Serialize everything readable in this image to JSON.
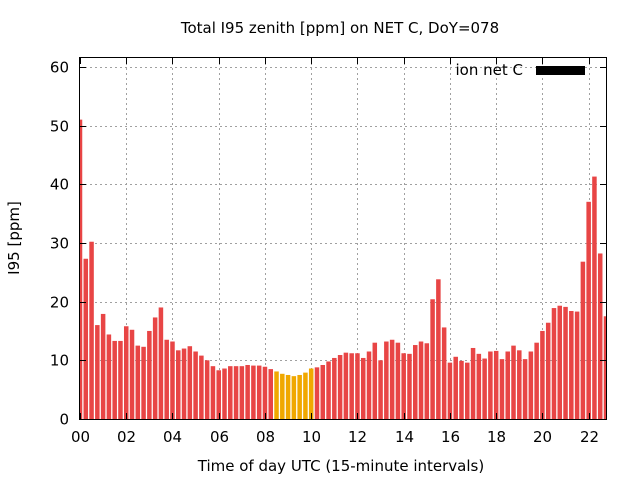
{
  "chart_data": {
    "type": "bar",
    "title": "Total I95 zenith [ppm] on NET C, DoY=078",
    "xlabel": "Time of day UTC (15-minute intervals)",
    "ylabel": "I95 [ppm]",
    "ylim": [
      0,
      61.5
    ],
    "xlim": [
      0,
      22.75
    ],
    "yticks": [
      0,
      10,
      20,
      30,
      40,
      50,
      60
    ],
    "xticks": [
      {
        "value": 0,
        "label": "00"
      },
      {
        "value": 2,
        "label": "02"
      },
      {
        "value": 4,
        "label": "04"
      },
      {
        "value": 6,
        "label": "06"
      },
      {
        "value": 8,
        "label": "08"
      },
      {
        "value": 10,
        "label": "10"
      },
      {
        "value": 12,
        "label": "12"
      },
      {
        "value": 14,
        "label": "14"
      },
      {
        "value": 16,
        "label": "16"
      },
      {
        "value": 18,
        "label": "18"
      },
      {
        "value": 20,
        "label": "20"
      },
      {
        "value": 22,
        "label": "22"
      }
    ],
    "grid": true,
    "legend": {
      "label": "ion net C",
      "color": "#000000",
      "position": "top-right"
    },
    "colors": {
      "default": "#e84545",
      "highlight": "#f0a800"
    },
    "bar_interval_hours": 0.25,
    "x": [
      0,
      0.25,
      0.5,
      0.75,
      1,
      1.25,
      1.5,
      1.75,
      2,
      2.25,
      2.5,
      2.75,
      3,
      3.25,
      3.5,
      3.75,
      4,
      4.25,
      4.5,
      4.75,
      5,
      5.25,
      5.5,
      5.75,
      6,
      6.25,
      6.5,
      6.75,
      7,
      7.25,
      7.5,
      7.75,
      8,
      8.25,
      8.5,
      8.75,
      9,
      9.25,
      9.5,
      9.75,
      10,
      10.25,
      10.5,
      10.75,
      11,
      11.25,
      11.5,
      11.75,
      12,
      12.25,
      12.5,
      12.75,
      13,
      13.25,
      13.5,
      13.75,
      14,
      14.25,
      14.5,
      14.75,
      15,
      15.25,
      15.5,
      15.75,
      16,
      16.25,
      16.5,
      16.75,
      17,
      17.25,
      17.5,
      17.75,
      18,
      18.25,
      18.5,
      18.75,
      19,
      19.25,
      19.5,
      19.75,
      20,
      20.25,
      20.5,
      20.75,
      21,
      21.25,
      21.5,
      21.75,
      22,
      22.25,
      22.5,
      22.75
    ],
    "values": [
      51,
      27.3,
      30.2,
      16,
      17.9,
      14.4,
      13.3,
      13.3,
      15.8,
      15.2,
      12.5,
      12.3,
      15,
      17.3,
      19,
      13.5,
      13.2,
      11.7,
      12,
      12.4,
      11.5,
      10.8,
      10,
      9,
      8.3,
      8.6,
      9,
      9,
      9,
      9.2,
      9.1,
      9.1,
      8.9,
      8.5,
      8.1,
      7.7,
      7.5,
      7.3,
      7.5,
      7.9,
      8.6,
      8.8,
      9.2,
      9.8,
      10.4,
      10.9,
      11.3,
      11.2,
      11.2,
      10.4,
      11.5,
      13,
      10,
      13.2,
      13.5,
      13,
      11.2,
      11.1,
      12.6,
      13.2,
      12.9,
      20.4,
      23.8,
      15.6,
      9.6,
      10.6,
      9.9,
      9.6,
      12.1,
      11.1,
      10.3,
      11.5,
      11.6,
      10.2,
      11.5,
      12.5,
      11.7,
      10.2,
      11.5,
      13,
      15,
      16.4,
      18.9,
      19.3,
      19.1,
      18.4,
      18.3,
      26.8,
      37,
      41.3,
      28.2,
      17.5
    ],
    "highlighted_indices": [
      34,
      35,
      36,
      37,
      38,
      39,
      40
    ]
  }
}
